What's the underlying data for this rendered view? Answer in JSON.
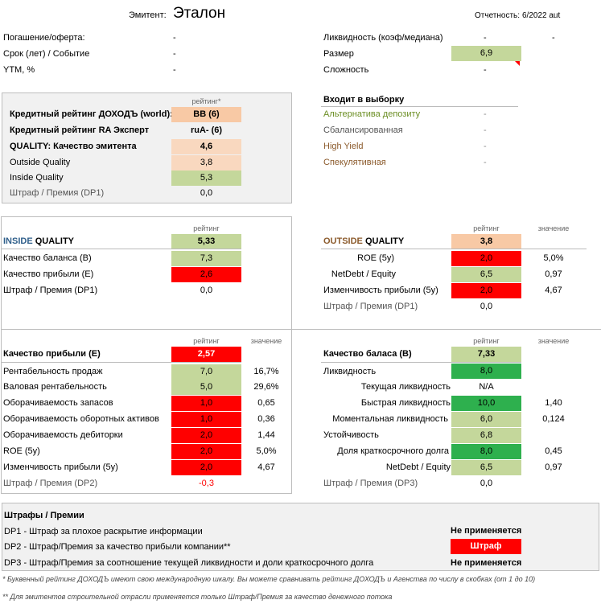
{
  "header": {
    "issuer_label": "Эмитент:",
    "issuer_name": "Эталон",
    "report_label": "Отчетность:",
    "report_value": "6/2022 aut"
  },
  "top_left": [
    {
      "label": "Погашение/оферта:",
      "value": "-"
    },
    {
      "label": "Срок (лет) / Событие",
      "value": "-"
    },
    {
      "label": "YTM, %",
      "value": "-"
    }
  ],
  "top_right": {
    "liquidity_label": "Ликвидность (коэф/медиана)",
    "liquidity_v1": "-",
    "liquidity_v2": "-",
    "size_label": "Размер",
    "size_value": "6,9",
    "complexity_label": "Сложность",
    "complexity_value": "-"
  },
  "rating_block": {
    "col_header": "рейтинг*",
    "rows": [
      {
        "label": "Кредитный рейтинг ДОХОДЪ (world):",
        "value": "BB (6)"
      },
      {
        "label": "Кредитный рейтинг RA Эксперт",
        "value": "ruA- (6)"
      },
      {
        "label": "QUALITY: Качество эмитента",
        "value": "4,6"
      },
      {
        "label": "Outside Quality",
        "value": "3,8"
      },
      {
        "label": "Inside Quality",
        "value": "5,3"
      },
      {
        "label": "Штраф / Премия (DP1)",
        "value": "0,0"
      }
    ]
  },
  "selection": {
    "title": "Входит в выборку",
    "rows": [
      {
        "label": "Альтернатива депозиту",
        "value": "-"
      },
      {
        "label": "Сбалансированная",
        "value": "-"
      },
      {
        "label": "High Yield",
        "value": "-"
      },
      {
        "label": "Спекулятивная",
        "value": "-"
      }
    ]
  },
  "inside": {
    "col_header": "рейтинг",
    "title_a": "INSIDE",
    "title_b": " QUALITY",
    "title_value": "5,33",
    "rows": [
      {
        "label": "Качество баланса (B)",
        "value": "7,3"
      },
      {
        "label": "Качество прибыли (E)",
        "value": "2,6"
      },
      {
        "label": "Штраф / Премия (DP1)",
        "value": "0,0"
      }
    ]
  },
  "outside": {
    "col_rating": "рейтинг",
    "col_value": "значение",
    "title_a": "OUTSIDE",
    "title_b": " QUALITY",
    "title_value": "3,8",
    "rows": [
      {
        "label": "ROE (5y)",
        "rating": "2,0",
        "value": "5,0%"
      },
      {
        "label": "NetDebt / Equity",
        "rating": "6,5",
        "value": "0,97"
      },
      {
        "label": "Изменчивость прибыли (5y)",
        "rating": "2,0",
        "value": "4,67"
      },
      {
        "label": "Штраф / Премия (DP1)",
        "rating": "0,0",
        "value": ""
      }
    ]
  },
  "earnings": {
    "col_rating": "рейтинг",
    "col_value": "значение",
    "title": "Качество прибыли (E)",
    "title_value": "2,57",
    "rows": [
      {
        "label": "Рентабельность продаж",
        "rating": "7,0",
        "value": "16,7%"
      },
      {
        "label": "Валовая рентабельность",
        "rating": "5,0",
        "value": "29,6%"
      },
      {
        "label": "Оборачиваемость запасов",
        "rating": "1,0",
        "value": "0,65"
      },
      {
        "label": "Оборачиваемость оборотных активов",
        "rating": "1,0",
        "value": "0,36"
      },
      {
        "label": "Оборачиваемость дебиторки",
        "rating": "2,0",
        "value": "1,44"
      },
      {
        "label": "ROE (5y)",
        "rating": "2,0",
        "value": "5,0%"
      },
      {
        "label": "Изменчивость прибыли (5y)",
        "rating": "2,0",
        "value": "4,67"
      },
      {
        "label": "Штраф / Премия (DP2)",
        "rating": "-0,3",
        "value": ""
      }
    ]
  },
  "balance": {
    "col_rating": "рейтинг",
    "col_value": "значение",
    "title": "Качество баласа (B)",
    "title_value": "7,33",
    "rows": [
      {
        "label": "Ликвидность",
        "rating": "8,0",
        "value": ""
      },
      {
        "label": "Текущая ликвидность",
        "rating": "N/A",
        "value": ""
      },
      {
        "label": "Быстрая ликвидность",
        "rating": "10,0",
        "value": "1,40"
      },
      {
        "label": "Моментальная ликвидность",
        "rating": "6,0",
        "value": "0,124"
      },
      {
        "label": "Устойчивость",
        "rating": "6,8",
        "value": ""
      },
      {
        "label": "Доля краткосрочного долга",
        "rating": "8,0",
        "value": "0,45"
      },
      {
        "label": "NetDebt / Equity",
        "rating": "6,5",
        "value": "0,97"
      },
      {
        "label": "Штраф / Премия (DP3)",
        "rating": "0,0",
        "value": ""
      }
    ]
  },
  "penalties": {
    "title": "Штрафы / Премии",
    "rows": [
      {
        "label": "DP1 - Штраф за плохое раскрытие информации",
        "value": "Не применяется"
      },
      {
        "label": "DP2 - Штраф/Премия за качество прибыли компании**",
        "value": "Штраф"
      },
      {
        "label": "DP3 - Штраф/Премия за соотношение текущей ликвидности и доли краткосрочного долга",
        "value": "Не применяется"
      }
    ]
  },
  "footnotes": [
    "* Буквенный рейтинг ДОХОДЪ имеют свою международную шкалу. Вы можете сравнивать рейтинг ДОХОДЪ и Агенства по числу в скобках (от 1 до 10)",
    "** Для эмитентов строительной отрасли применяется только Штраф/Премия за качество денежного потока"
  ],
  "colors": {
    "green": "#c4d79b",
    "dark_green": "#2eb04e",
    "red": "#ff0000",
    "orange": "#f8c9a5",
    "peach": "#f9d8bf"
  }
}
